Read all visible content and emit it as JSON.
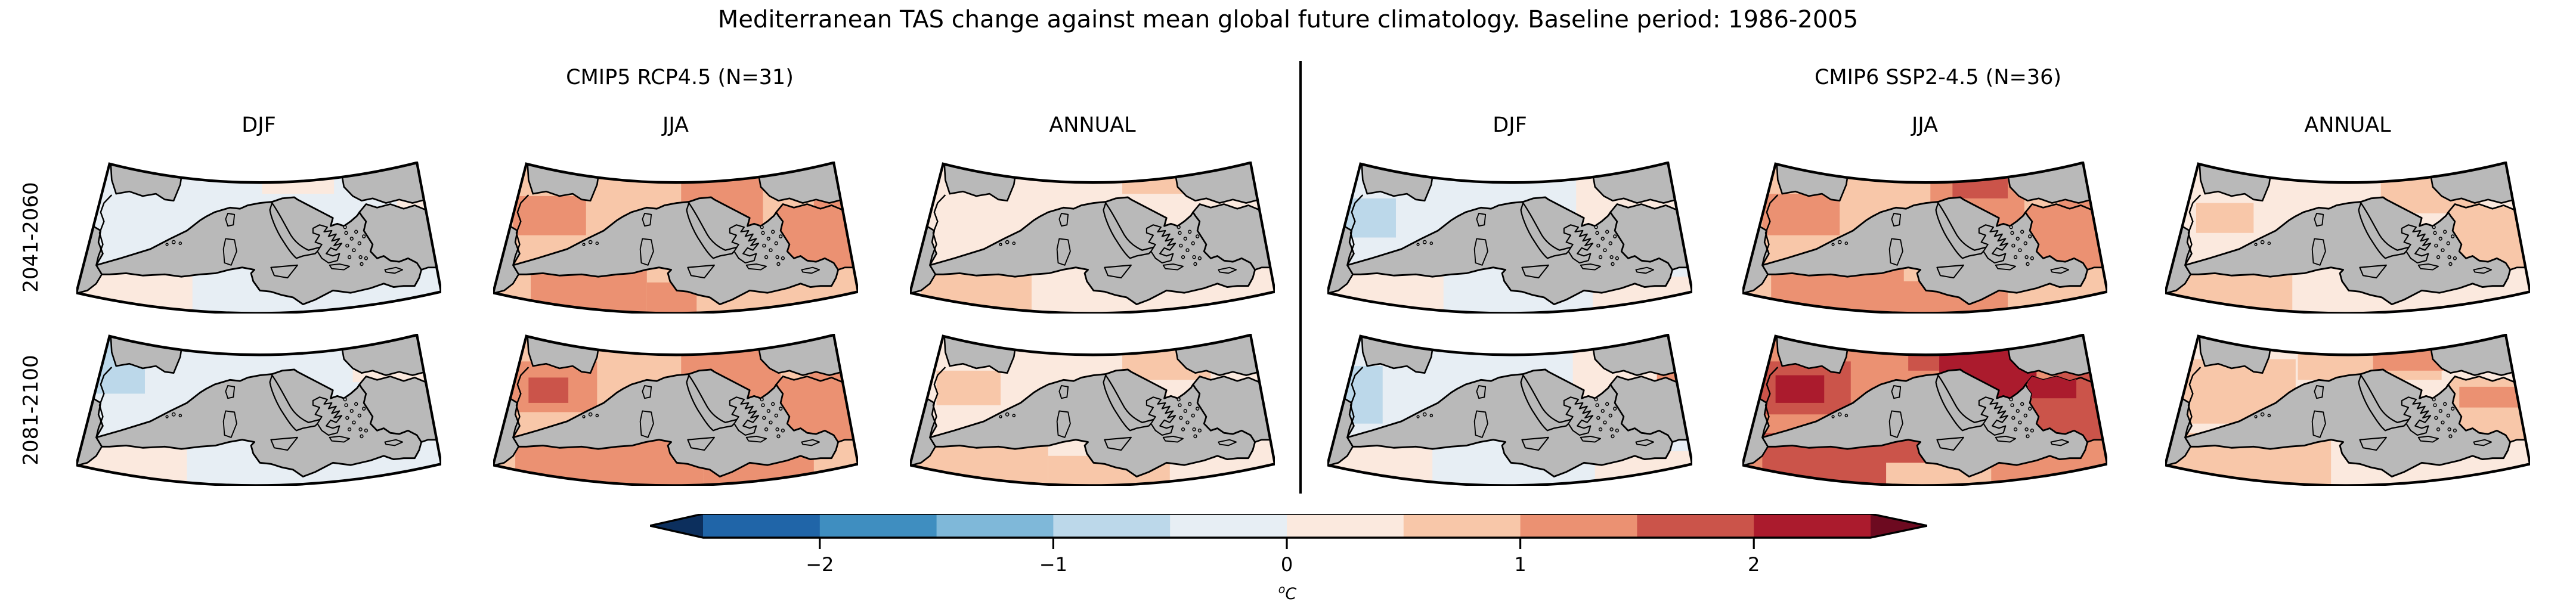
{
  "title": "Mediterranean TAS change against mean global future climatology. Baseline period: 1986-2005",
  "groups": [
    {
      "subtitle": "CMIP5 RCP4.5 (N=31)"
    },
    {
      "subtitle": "CMIP6 SSP2-4.5 (N=36)"
    }
  ],
  "column_headers": [
    "DJF",
    "JJA",
    "ANNUAL",
    "DJF",
    "JJA",
    "ANNUAL"
  ],
  "row_labels": [
    "2041-2060",
    "2081-2100"
  ],
  "colorbar": {
    "ticks": [
      "−2",
      "−1",
      "0",
      "1",
      "2"
    ],
    "tick_values": [
      -2,
      -1,
      0,
      1,
      2
    ],
    "unit_sup": "o",
    "unit_letter": "C",
    "levels": [
      -2.5,
      -2,
      -1.5,
      -1,
      -0.5,
      0,
      0.5,
      1,
      1.5,
      2,
      2.5
    ],
    "segment_keys": [
      "s1",
      "s2",
      "s3",
      "s4",
      "s5",
      "s6",
      "s7",
      "s8",
      "s9",
      "s10"
    ],
    "extend_low_key": "negExt",
    "extend_high_key": "posExt"
  },
  "palette": {
    "negExt": "#0c2f5d",
    "s1": "#2065a8",
    "s2": "#3f8ec0",
    "s3": "#7fb8d9",
    "s4": "#bcd8ea",
    "s5": "#e7eef4",
    "s6": "#fbe9de",
    "s7": "#f8c7a9",
    "s8": "#eb9172",
    "s9": "#cb544a",
    "s10": "#ab1b2d",
    "posExt": "#6d0a20",
    "sea": "#b9b9b9",
    "coast": "#000000"
  },
  "panels": [
    {
      "name": "cmip5-djf-2041-2060",
      "model": "CMIP5 RCP4.5",
      "season": "DJF",
      "period": "2041-2060",
      "base": "s5",
      "anatolia": "sea",
      "patches": [
        [
          168,
          0,
          65,
          28,
          "s6"
        ],
        [
          290,
          28,
          40,
          50,
          "s6"
        ],
        [
          0,
          95,
          105,
          37,
          "s6"
        ]
      ],
      "over": []
    },
    {
      "name": "cmip5-jja-2041-2060",
      "model": "CMIP5 RCP4.5",
      "season": "JJA",
      "period": "2041-2060",
      "base": "s7",
      "anatolia": "s8",
      "patches": [
        [
          18,
          30,
          66,
          34,
          "s8"
        ],
        [
          170,
          0,
          74,
          55,
          "s8"
        ],
        [
          34,
          90,
          105,
          42,
          "s8"
        ],
        [
          139,
          105,
          45,
          27,
          "s8"
        ],
        [
          290,
          34,
          40,
          46,
          "s8"
        ]
      ],
      "over": []
    },
    {
      "name": "cmip5-annual-2041-2060",
      "model": "CMIP5 RCP4.5",
      "season": "ANNUAL",
      "period": "2041-2060",
      "base": "s6",
      "anatolia": "sea",
      "patches": [
        [
          10,
          96,
          100,
          36,
          "s7"
        ],
        [
          192,
          2,
          62,
          26,
          "s7"
        ]
      ],
      "over": []
    },
    {
      "name": "cmip6-djf-2041-2060",
      "model": "CMIP6 SSP2-4.5",
      "season": "DJF",
      "period": "2041-2060",
      "base": "s5",
      "anatolia": "sea",
      "patches": [
        [
          14,
          32,
          48,
          34,
          "s4"
        ],
        [
          225,
          0,
          105,
          55,
          "s6"
        ],
        [
          0,
          95,
          105,
          37,
          "s6"
        ],
        [
          240,
          100,
          90,
          32,
          "s6"
        ]
      ],
      "over": []
    },
    {
      "name": "cmip6-jja-2041-2060",
      "model": "CMIP6 SSP2-4.5",
      "season": "JJA",
      "period": "2041-2060",
      "base": "s7",
      "anatolia": "s8",
      "patches": [
        [
          18,
          28,
          70,
          36,
          "s8"
        ],
        [
          170,
          0,
          85,
          55,
          "s8"
        ],
        [
          190,
          2,
          50,
          30,
          "s9"
        ],
        [
          26,
          90,
          120,
          42,
          "s8"
        ],
        [
          140,
          104,
          100,
          28,
          "s8"
        ],
        [
          286,
          30,
          44,
          52,
          "s8"
        ]
      ],
      "over": []
    },
    {
      "name": "cmip6-annual-2041-2060",
      "model": "CMIP6 SSP2-4.5",
      "season": "ANNUAL",
      "period": "2041-2060",
      "base": "s6",
      "anatolia": "s7",
      "patches": [
        [
          195,
          0,
          90,
          45,
          "s7"
        ],
        [
          0,
          92,
          115,
          40,
          "s7"
        ],
        [
          28,
          36,
          52,
          26,
          "s7"
        ]
      ],
      "over": []
    },
    {
      "name": "cmip5-djf-2081-2100",
      "model": "CMIP5 RCP4.5",
      "season": "DJF",
      "period": "2081-2100",
      "base": "s5",
      "anatolia": "sea",
      "patches": [
        [
          8,
          4,
          54,
          48,
          "s4"
        ],
        [
          0,
          98,
          100,
          34,
          "s6"
        ],
        [
          250,
          2,
          80,
          40,
          "s6"
        ]
      ],
      "over": []
    },
    {
      "name": "cmip5-jja-2081-2100",
      "model": "CMIP5 RCP4.5",
      "season": "JJA",
      "period": "2081-2100",
      "base": "s7",
      "anatolia": "s8",
      "patches": [
        [
          170,
          0,
          90,
          55,
          "s8"
        ],
        [
          14,
          24,
          80,
          44,
          "s8"
        ],
        [
          32,
          38,
          36,
          22,
          "s9"
        ],
        [
          20,
          88,
          170,
          44,
          "s8"
        ],
        [
          190,
          106,
          100,
          26,
          "s8"
        ],
        [
          286,
          30,
          44,
          52,
          "s8"
        ]
      ],
      "over": []
    },
    {
      "name": "cmip5-annual-2081-2100",
      "model": "CMIP5 RCP4.5",
      "season": "ANNUAL",
      "period": "2081-2100",
      "base": "s6",
      "anatolia": "sea",
      "patches": [
        [
          0,
          90,
          125,
          42,
          "s7"
        ],
        [
          125,
          106,
          110,
          26,
          "s7"
        ],
        [
          192,
          0,
          80,
          40,
          "s7"
        ],
        [
          24,
          32,
          58,
          30,
          "s7"
        ]
      ],
      "over": []
    },
    {
      "name": "cmip6-djf-2081-2100",
      "model": "CMIP6 SSP2-4.5",
      "season": "DJF",
      "period": "2081-2100",
      "base": "s5",
      "anatolia": "sea",
      "patches": [
        [
          10,
          28,
          40,
          50,
          "s4"
        ],
        [
          222,
          0,
          108,
          55,
          "s6"
        ],
        [
          246,
          6,
          42,
          22,
          "s7"
        ],
        [
          298,
          32,
          26,
          16,
          "s8"
        ],
        [
          0,
          98,
          95,
          34,
          "s6"
        ],
        [
          242,
          102,
          88,
          30,
          "s6"
        ]
      ],
      "over": []
    },
    {
      "name": "cmip6-jja-2081-2100",
      "model": "CMIP6 SSP2-4.5",
      "season": "JJA",
      "period": "2081-2100",
      "base": "s8",
      "anatolia": "s9",
      "patches": [
        [
          150,
          0,
          52,
          32,
          "s9"
        ],
        [
          178,
          0,
          88,
          58,
          "s10"
        ],
        [
          14,
          24,
          84,
          46,
          "s9"
        ],
        [
          30,
          36,
          44,
          24,
          "s10"
        ],
        [
          18,
          86,
          180,
          46,
          "s9"
        ],
        [
          130,
          112,
          95,
          20,
          "s7"
        ],
        [
          284,
          26,
          46,
          62,
          "s9"
        ]
      ],
      "over": [
        [
          258,
          34,
          44,
          22,
          "s10"
        ]
      ]
    },
    {
      "name": "cmip6-annual-2081-2100",
      "model": "CMIP6 SSP2-4.5",
      "season": "ANNUAL",
      "period": "2081-2100",
      "base": "s6",
      "anatolia": "s7",
      "patches": [
        [
          8,
          22,
          110,
          56,
          "s7"
        ],
        [
          120,
          0,
          130,
          40,
          "s7"
        ],
        [
          0,
          86,
          150,
          46,
          "s7"
        ],
        [
          188,
          6,
          64,
          26,
          "s8"
        ]
      ],
      "over": [
        [
          266,
          46,
          54,
          18,
          "s8"
        ]
      ]
    }
  ],
  "chart_data": {
    "type": "heatmap",
    "title": "Mediterranean TAS change against mean global future climatology. Baseline period: 1986-2005",
    "layout": "2 rows (2041-2060, 2081-2100) x 6 columns (DJF, JJA, ANNUAL for CMIP5 RCP4.5; DJF, JJA, ANNUAL for CMIP6 SSP2-4.5)",
    "unit": "°C",
    "colorbar_levels": [
      -2.5,
      -2,
      -1.5,
      -1,
      -0.5,
      0,
      0.5,
      1,
      1.5,
      2,
      2.5
    ],
    "colorbar_extend": "both",
    "panel_summary": [
      {
        "model": "CMIP5 RCP4.5",
        "period": "2041-2060",
        "season": "DJF",
        "approx_range_C": [
          -0.5,
          0.3
        ]
      },
      {
        "model": "CMIP5 RCP4.5",
        "period": "2041-2060",
        "season": "JJA",
        "approx_range_C": [
          0.2,
          1.2
        ]
      },
      {
        "model": "CMIP5 RCP4.5",
        "period": "2041-2060",
        "season": "ANNUAL",
        "approx_range_C": [
          0.0,
          0.8
        ]
      },
      {
        "model": "CMIP6 SSP2-4.5",
        "period": "2041-2060",
        "season": "DJF",
        "approx_range_C": [
          -0.8,
          0.4
        ]
      },
      {
        "model": "CMIP6 SSP2-4.5",
        "period": "2041-2060",
        "season": "JJA",
        "approx_range_C": [
          0.3,
          1.5
        ]
      },
      {
        "model": "CMIP6 SSP2-4.5",
        "period": "2041-2060",
        "season": "ANNUAL",
        "approx_range_C": [
          0.0,
          0.9
        ]
      },
      {
        "model": "CMIP5 RCP4.5",
        "period": "2081-2100",
        "season": "DJF",
        "approx_range_C": [
          -1.0,
          0.4
        ]
      },
      {
        "model": "CMIP5 RCP4.5",
        "period": "2081-2100",
        "season": "JJA",
        "approx_range_C": [
          0.3,
          1.6
        ]
      },
      {
        "model": "CMIP5 RCP4.5",
        "period": "2081-2100",
        "season": "ANNUAL",
        "approx_range_C": [
          0.0,
          0.9
        ]
      },
      {
        "model": "CMIP6 SSP2-4.5",
        "period": "2081-2100",
        "season": "DJF",
        "approx_range_C": [
          -1.2,
          1.0
        ]
      },
      {
        "model": "CMIP6 SSP2-4.5",
        "period": "2081-2100",
        "season": "JJA",
        "approx_range_C": [
          0.5,
          2.5
        ]
      },
      {
        "model": "CMIP6 SSP2-4.5",
        "period": "2081-2100",
        "season": "ANNUAL",
        "approx_range_C": [
          0.0,
          1.2
        ]
      }
    ]
  }
}
